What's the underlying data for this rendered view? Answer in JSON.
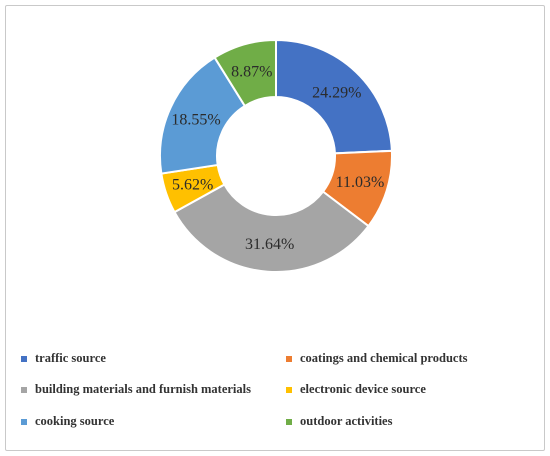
{
  "chart_data": {
    "type": "pie",
    "style": "donut",
    "series": [
      {
        "label": "traffic source",
        "value": 24.29,
        "display": "24.29%",
        "color": "#4472C4"
      },
      {
        "label": "coatings and chemical products",
        "value": 11.03,
        "display": "11.03%",
        "color": "#ED7D31"
      },
      {
        "label": "building materials and furnish materials",
        "value": 31.64,
        "display": "31.64%",
        "color": "#A5A5A5"
      },
      {
        "label": "electronic device source",
        "value": 5.62,
        "display": "5.62%",
        "color": "#FFC000"
      },
      {
        "label": "cooking source",
        "value": 18.55,
        "display": "18.55%",
        "color": "#5B9BD5"
      },
      {
        "label": "outdoor activities",
        "value": 8.87,
        "display": "8.87%",
        "color": "#70AD47"
      }
    ],
    "legend_position": "bottom"
  }
}
